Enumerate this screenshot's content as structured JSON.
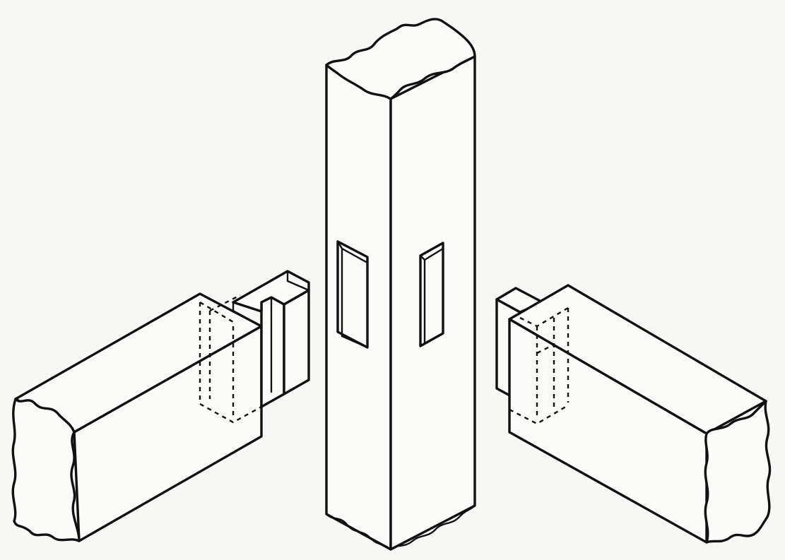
{
  "figure": {
    "background_color": "#f7f7f5",
    "line_color": "#111111",
    "parts": [
      {
        "id": "post",
        "icon": "square-post-icon",
        "features": [
          "left-face-mortise",
          "right-face-mortise",
          "rough-cut-top",
          "rough-cut-bottom"
        ]
      },
      {
        "id": "left-rail",
        "icon": "rail-with-tenon-icon",
        "features": [
          "haunched-tenon",
          "hidden-tenon-outline",
          "rough-cut-end"
        ]
      },
      {
        "id": "right-rail",
        "icon": "rail-with-tenon-icon",
        "features": [
          "tenon",
          "hidden-tenon-outline",
          "rough-cut-end"
        ]
      }
    ]
  }
}
